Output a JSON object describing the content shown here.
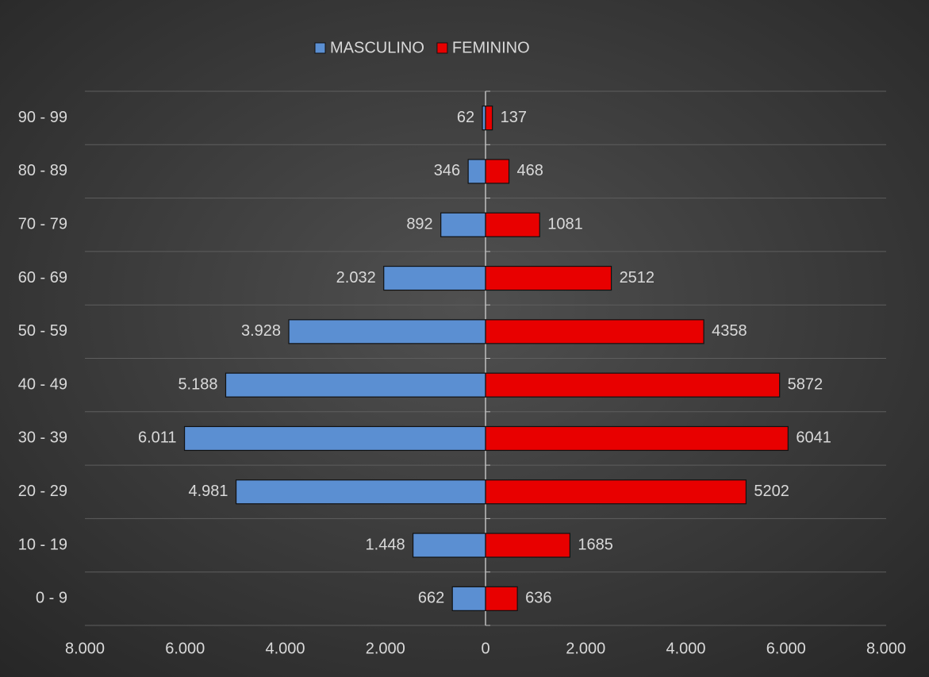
{
  "chart_data": {
    "type": "bar",
    "orientation": "horizontal",
    "stacked": true,
    "categories": [
      "0 - 9",
      "10 - 19",
      "20 - 29",
      "30 - 39",
      "40 - 49",
      "50 - 59",
      "60 - 69",
      "70 - 79",
      "80 - 89",
      "90 - 99"
    ],
    "series": [
      {
        "name": "MASCULINO",
        "color": "#5b8fd2",
        "values": [
          -662,
          -1448,
          -4981,
          -6011,
          -5188,
          -3928,
          -2032,
          -892,
          -346,
          -62
        ],
        "value_labels": [
          "662",
          "1.448",
          "4.981",
          "6.011",
          "5.188",
          "3.928",
          "2.032",
          "892",
          "346",
          "62"
        ]
      },
      {
        "name": "FEMININO",
        "color": "#e80000",
        "values": [
          636,
          1685,
          5202,
          6041,
          5872,
          4358,
          2512,
          1081,
          468,
          137
        ]
      }
    ],
    "xlim": [
      -8000,
      8000
    ],
    "xticks": [
      {
        "value": -8000,
        "label": "8.000"
      },
      {
        "value": -6000,
        "label": "6.000"
      },
      {
        "value": -4000,
        "label": "4.000"
      },
      {
        "value": -2000,
        "label": "2.000"
      },
      0,
      {
        "value": 2000,
        "label": "2.000"
      },
      {
        "value": 4000,
        "label": "4.000"
      },
      {
        "value": 6000,
        "label": "6.000"
      },
      {
        "value": 8000,
        "label": "8.000"
      }
    ],
    "legend": "top"
  }
}
